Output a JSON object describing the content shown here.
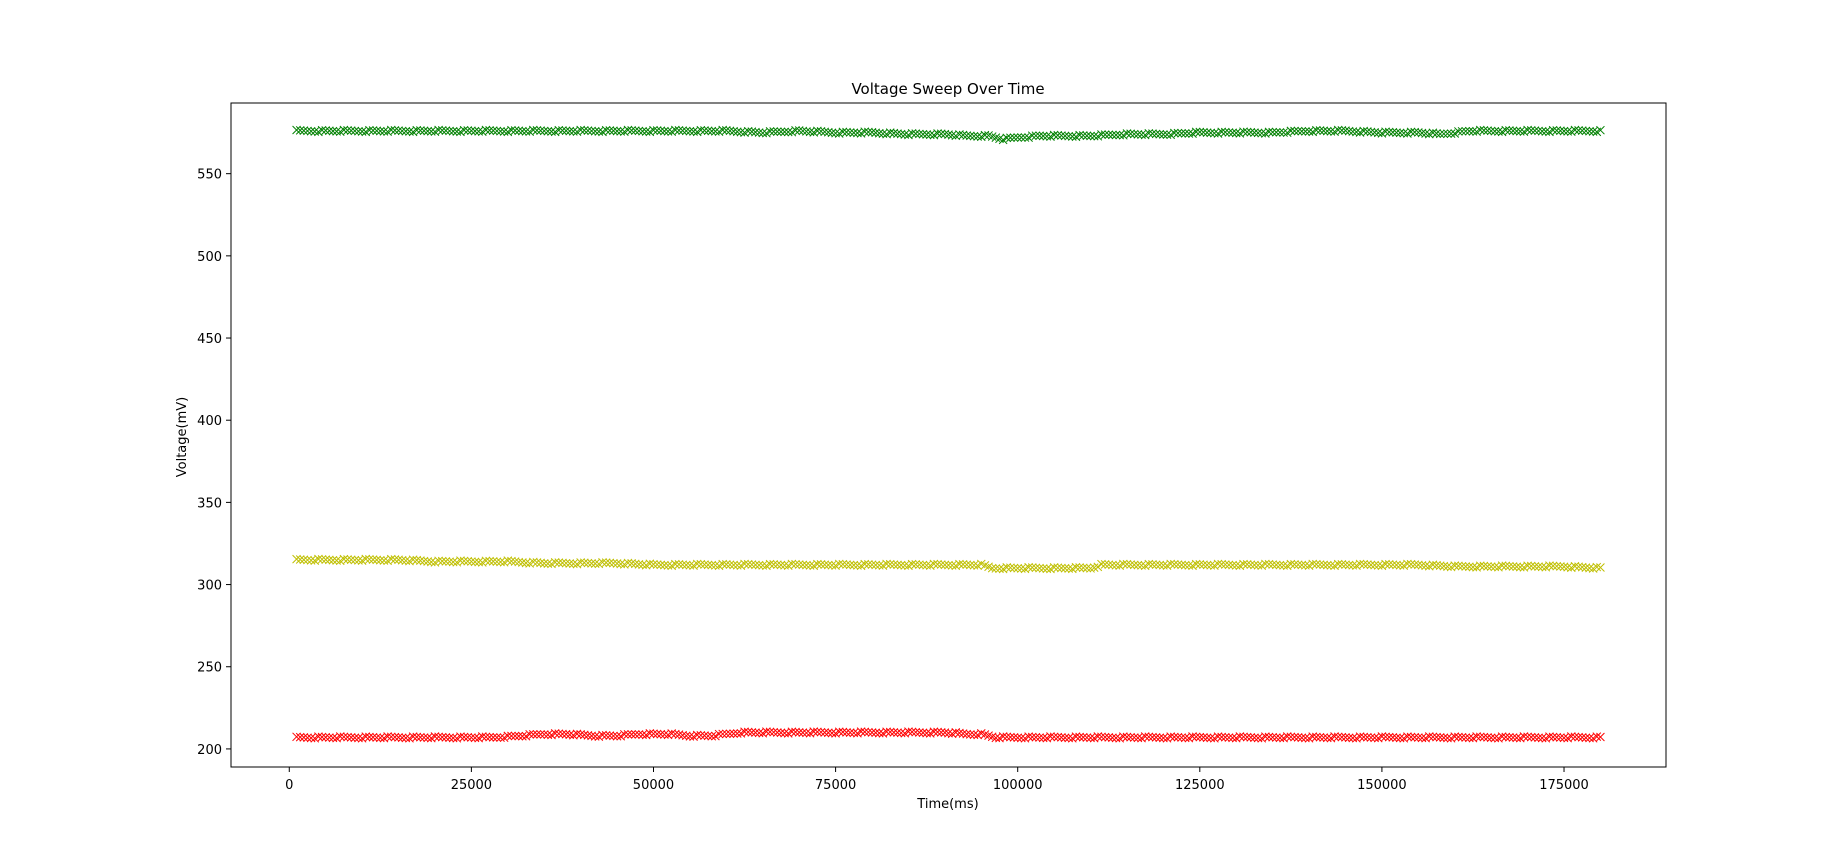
{
  "chart_data": {
    "type": "scatter",
    "title": "Voltage Sweep Over Time",
    "xlabel": "Time(ms)",
    "ylabel": "Voltage(mV)",
    "xlim": [
      -8000,
      189000
    ],
    "ylim": [
      189,
      593
    ],
    "xticks": [
      0,
      25000,
      50000,
      75000,
      100000,
      125000,
      150000,
      175000
    ],
    "yticks": [
      200,
      250,
      300,
      350,
      400,
      450,
      500,
      550
    ],
    "grid": false,
    "marker": "x",
    "series": [
      {
        "color": "#008000",
        "x": [
          1000,
          10000,
          20000,
          30000,
          40000,
          50000,
          60000,
          65000,
          70000,
          75000,
          80000,
          85000,
          90000,
          93000,
          96000,
          98000,
          100000,
          103000,
          106000,
          110000,
          115000,
          120000,
          125000,
          130000,
          135000,
          140000,
          145000,
          150000,
          155000,
          158000,
          162000,
          170000,
          180000
        ],
        "y": [
          576,
          576,
          576,
          576,
          576,
          576,
          576,
          575,
          576,
          575,
          575,
          574,
          574,
          573,
          573,
          571,
          572,
          573,
          573,
          573,
          574,
          574,
          575,
          575,
          575,
          576,
          576,
          575,
          575,
          574,
          576,
          576,
          576
        ]
      },
      {
        "color": "#bfbf00",
        "x": [
          1000,
          5000,
          10000,
          15000,
          20000,
          25000,
          30000,
          35000,
          40000,
          45000,
          50000,
          60000,
          70000,
          80000,
          90000,
          95000,
          96500,
          100000,
          105000,
          110000,
          111500,
          115000,
          125000,
          135000,
          145000,
          155000,
          160000,
          165000,
          170000,
          175000,
          180000
        ],
        "y": [
          315,
          315,
          315,
          315,
          314,
          314,
          314,
          313,
          313,
          313,
          312,
          312,
          312,
          312,
          312,
          312,
          310,
          310,
          310,
          310,
          312,
          312,
          312,
          312,
          312,
          312,
          311,
          311,
          311,
          311,
          310
        ]
      },
      {
        "color": "#ff0000",
        "x": [
          1000,
          10000,
          20000,
          28000,
          32000,
          35000,
          38000,
          42000,
          45000,
          48000,
          52000,
          55000,
          58000,
          62000,
          66000,
          70000,
          75000,
          80000,
          85000,
          90000,
          93000,
          95000,
          97000,
          100000,
          110000,
          120000,
          130000,
          140000,
          150000,
          160000,
          170000,
          180000
        ],
        "y": [
          207,
          207,
          207,
          207,
          208,
          209,
          209,
          208,
          208,
          209,
          209,
          208,
          208,
          210,
          210,
          210,
          210,
          210,
          210,
          210,
          209,
          209,
          207,
          207,
          207,
          207,
          207,
          207,
          207,
          207,
          207,
          207
        ]
      }
    ]
  }
}
